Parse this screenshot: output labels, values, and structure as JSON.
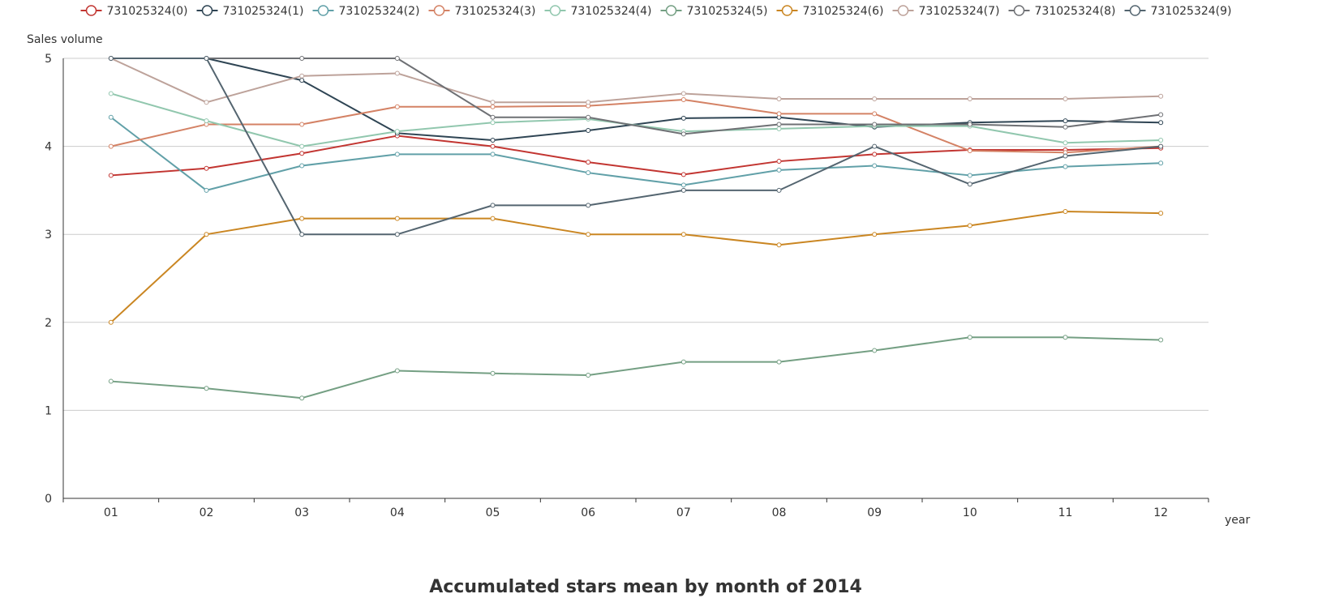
{
  "chart_data": {
    "type": "line",
    "title": "Accumulated stars mean by month of 2014",
    "xlabel": "year",
    "ylabel": "Sales volume",
    "categories": [
      "01",
      "02",
      "03",
      "04",
      "05",
      "06",
      "07",
      "08",
      "09",
      "10",
      "11",
      "12"
    ],
    "ylim": [
      0,
      5
    ],
    "yticks": [
      0,
      1,
      2,
      3,
      4,
      5
    ],
    "grid": "horizontal",
    "legend_position": "top",
    "series": [
      {
        "name": "731025324(0)",
        "color": "#c23531",
        "values": [
          3.67,
          3.75,
          3.92,
          4.12,
          4.0,
          3.82,
          3.68,
          3.83,
          3.91,
          3.96,
          3.96,
          3.98
        ]
      },
      {
        "name": "731025324(1)",
        "color": "#2f4554",
        "values": [
          5.0,
          5.0,
          4.75,
          4.15,
          4.07,
          4.18,
          4.32,
          4.33,
          4.22,
          4.27,
          4.29,
          4.27
        ]
      },
      {
        "name": "731025324(2)",
        "color": "#61a0a8",
        "values": [
          4.33,
          3.5,
          3.78,
          3.91,
          3.91,
          3.7,
          3.56,
          3.73,
          3.78,
          3.67,
          3.77,
          3.81
        ]
      },
      {
        "name": "731025324(3)",
        "color": "#d48265",
        "values": [
          4.0,
          4.25,
          4.25,
          4.45,
          4.45,
          4.46,
          4.53,
          4.37,
          4.37,
          3.95,
          3.93,
          4.0
        ]
      },
      {
        "name": "731025324(4)",
        "color": "#91c7ae",
        "values": [
          4.6,
          4.29,
          4.0,
          4.17,
          4.27,
          4.31,
          4.17,
          4.2,
          4.23,
          4.23,
          4.04,
          4.07
        ]
      },
      {
        "name": "731025324(5)",
        "color": "#749f83",
        "values": [
          1.33,
          1.25,
          1.14,
          1.45,
          1.42,
          1.4,
          1.55,
          1.55,
          1.68,
          1.83,
          1.83,
          1.8
        ]
      },
      {
        "name": "731025324(6)",
        "color": "#ca8622",
        "values": [
          2.0,
          3.0,
          3.18,
          3.18,
          3.18,
          3.0,
          3.0,
          2.88,
          3.0,
          3.1,
          3.26,
          3.24
        ]
      },
      {
        "name": "731025324(7)",
        "color": "#bda29a",
        "values": [
          5.0,
          4.5,
          4.8,
          4.83,
          4.5,
          4.5,
          4.6,
          4.54,
          4.54,
          4.54,
          4.54,
          4.57
        ]
      },
      {
        "name": "731025324(8)",
        "color": "#6e7074",
        "values": [
          5.0,
          5.0,
          5.0,
          5.0,
          4.33,
          4.33,
          4.14,
          4.25,
          4.25,
          4.25,
          4.22,
          4.36
        ]
      },
      {
        "name": "731025324(9)",
        "color": "#546570",
        "values": [
          5.0,
          5.0,
          3.0,
          3.0,
          3.33,
          3.33,
          3.5,
          3.5,
          4.0,
          3.57,
          3.89,
          4.0
        ]
      }
    ]
  }
}
